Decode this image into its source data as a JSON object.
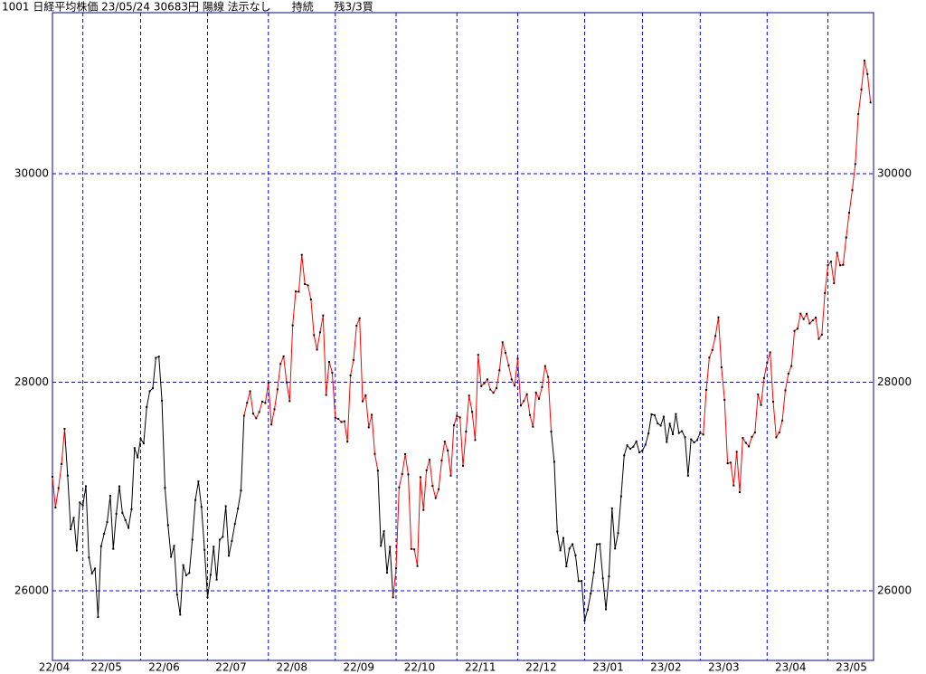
{
  "chart_data": {
    "type": "line",
    "title": "1001 日経平均株価 23/05/24 30683円 陽線 法示なし      持続      残3/3買",
    "xlim": [
      0,
      270
    ],
    "xticks": [
      {
        "value": 0,
        "label": "22/04"
      },
      {
        "value": 10,
        "label": "22/05"
      },
      {
        "value": 29,
        "label": "22/06"
      },
      {
        "value": 51,
        "label": "22/07"
      },
      {
        "value": 71,
        "label": "22/08"
      },
      {
        "value": 93,
        "label": "22/09"
      },
      {
        "value": 113,
        "label": "22/10"
      },
      {
        "value": 133,
        "label": "22/11"
      },
      {
        "value": 153,
        "label": "22/12"
      },
      {
        "value": 175,
        "label": "23/01"
      },
      {
        "value": 194,
        "label": "23/02"
      },
      {
        "value": 213,
        "label": "23/03"
      },
      {
        "value": 235,
        "label": "23/04"
      },
      {
        "value": 255,
        "label": "23/05"
      }
    ],
    "ylim": [
      25332,
      31545
    ],
    "yticks": [
      26000,
      28000,
      30000
    ],
    "grid": true,
    "series": [
      {
        "color": "#000000",
        "values": [
          null,
          null,
          null,
          null,
          27553,
          27105,
          26590,
          26700,
          26386,
          26847,
          26818,
          27003,
          26319,
          26167,
          26213,
          25748,
          26428,
          26547,
          26659,
          26911,
          26402,
          26739,
          27002,
          26748,
          26678,
          26604,
          26782,
          27369,
          27279,
          27457,
          27413,
          27761,
          27915,
          27943,
          28234,
          28246,
          27824,
          26987,
          26629,
          26326,
          26431,
          25963,
          25771,
          26246,
          26149,
          26171,
          26491,
          26871,
          27049,
          26804,
          26393,
          25935,
          26153,
          26423,
          26107,
          26490,
          26517,
          26812,
          26336,
          26478,
          26643,
          26788,
          26961,
          27680,
          null,
          null,
          null,
          null,
          null,
          null,
          null,
          null,
          null,
          null,
          null,
          null,
          null,
          null,
          null,
          null,
          null,
          null,
          null,
          null,
          null,
          null,
          null,
          null,
          null,
          null,
          null,
          null,
          null,
          null,
          null,
          null,
          null,
          null,
          null,
          null,
          null,
          null,
          null,
          null,
          null,
          null,
          null,
          27153,
          26431,
          26571,
          26173,
          26422,
          25937,
          null,
          null,
          null,
          null,
          null,
          null,
          null,
          null,
          null,
          null,
          null,
          null,
          null,
          null,
          null,
          null,
          null,
          null,
          null,
          null,
          null,
          null,
          null,
          null,
          null,
          null,
          null,
          null,
          null,
          null,
          null,
          null,
          null,
          null,
          null,
          null,
          null,
          null,
          null,
          null,
          null,
          null,
          null,
          null,
          null,
          null,
          null,
          null,
          null,
          null,
          null,
          27527,
          27237,
          26568,
          26387,
          26507,
          26235,
          26405,
          26447,
          26340,
          26093,
          26094,
          25716,
          25820,
          25973,
          26175,
          26446,
          26449,
          26119,
          25822,
          26138,
          26791,
          26405,
          26553,
          26906,
          27299,
          27395,
          27362,
          27382,
          27433,
          27327,
          27346,
          27402,
          27509,
          27693,
          27685,
          27606,
          27584,
          27670,
          27427,
          27602,
          27501,
          27696,
          27513,
          27531,
          27473,
          27104,
          27453,
          27423,
          27445,
          27516,
          null,
          null,
          null,
          null,
          null,
          null,
          null,
          null,
          null,
          null,
          null,
          null,
          null,
          null,
          null,
          null,
          null,
          null,
          null,
          null,
          null,
          null,
          null,
          null,
          null,
          null,
          null,
          null,
          null,
          null,
          null,
          null,
          null,
          null,
          null,
          null,
          null,
          null,
          null,
          null,
          null,
          null,
          null,
          null,
          null,
          null,
          null,
          null,
          null,
          null,
          null,
          null,
          null,
          null,
          null,
          null
        ]
      },
      {
        "color": "#ff0000",
        "values": [
          27093,
          26799,
          26985,
          27217,
          27553,
          null,
          null,
          null,
          null,
          null,
          null,
          null,
          null,
          null,
          null,
          null,
          null,
          null,
          null,
          null,
          null,
          null,
          null,
          null,
          null,
          null,
          null,
          null,
          null,
          null,
          null,
          null,
          null,
          null,
          null,
          null,
          null,
          null,
          null,
          null,
          null,
          null,
          null,
          null,
          null,
          null,
          null,
          null,
          null,
          null,
          null,
          null,
          null,
          null,
          null,
          null,
          null,
          null,
          null,
          null,
          null,
          null,
          null,
          27680,
          27803,
          27914,
          27699,
          27655,
          27715,
          27815,
          27801,
          27993,
          27594,
          27741,
          27932,
          28176,
          28249,
          27999,
          27819,
          28546,
          28871,
          28868,
          29222,
          28942,
          28930,
          28794,
          28452,
          28313,
          28479,
          28641,
          27878,
          28195,
          28091,
          27661,
          27650,
          27619,
          27626,
          27430,
          28065,
          28214,
          28542,
          28614,
          27818,
          27875,
          27567,
          27688,
          27313,
          27153,
          null,
          null,
          null,
          null,
          25937,
          26215,
          26992,
          27120,
          27311,
          27116,
          26401,
          26397,
          26237,
          27090,
          26775,
          27156,
          27257,
          27006,
          26890,
          26974,
          27250,
          27431,
          27345,
          27105,
          27587,
          27678,
          27663,
          27199,
          27527,
          27872,
          27716,
          27446,
          28263,
          27963,
          27990,
          28028,
          27930,
          27899,
          27944,
          28115,
          28383,
          28283,
          28162,
          28027,
          27968,
          28226,
          27777,
          27820,
          27885,
          27686,
          27574,
          27901,
          27842,
          27954,
          28156,
          28051,
          27527,
          null,
          null,
          null,
          null,
          null,
          null,
          null,
          null,
          null,
          null,
          null,
          null,
          null,
          null,
          null,
          null,
          null,
          null,
          null,
          null,
          null,
          null,
          null,
          null,
          null,
          null,
          null,
          null,
          null,
          null,
          null,
          null,
          null,
          null,
          null,
          null,
          null,
          null,
          null,
          null,
          null,
          null,
          null,
          null,
          null,
          null,
          null,
          null,
          27516,
          27498,
          27927,
          28237,
          28309,
          28444,
          28623,
          28143,
          27832,
          27222,
          27229,
          27010,
          27333,
          26945,
          27466,
          27419,
          27385,
          27476,
          27518,
          27883,
          27782,
          28041,
          28188,
          28287,
          27813,
          27472,
          27518,
          27633,
          27923,
          28082,
          28156,
          28493,
          28514,
          28658,
          28606,
          28657,
          28564,
          28593,
          28620,
          28416,
          28457,
          28856,
          29123,
          29157,
          28949,
          29242,
          29122,
          29126,
          29388,
          29626,
          29842,
          30093,
          30573,
          30808,
          31086,
          30957,
          30683
        ]
      }
    ]
  }
}
